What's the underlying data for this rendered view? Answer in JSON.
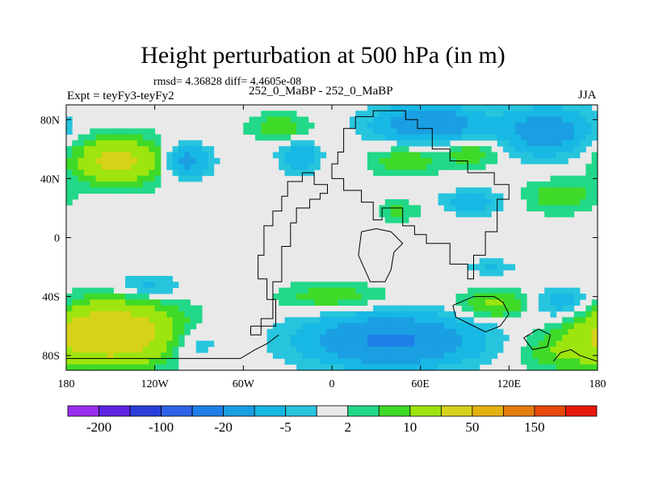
{
  "figure": {
    "title": "Height perturbation at 500 hPa (in m)",
    "stats": "rmsd= 4.36828 diff= 4.4605e-08",
    "experiment": "Expt = teyFy3-teyFy2",
    "comparison": "252_0_MaBP - 252_0_MaBP",
    "season": "JJA"
  },
  "chart_data": {
    "type": "heatmap",
    "title": "Height perturbation at 500 hPa (in m)",
    "xlabel": "",
    "ylabel": "",
    "xlim": [
      -180,
      180
    ],
    "ylim": [
      -90,
      90
    ],
    "x_ticks": [
      {
        "value": -180,
        "label": "180"
      },
      {
        "value": -120,
        "label": "120W"
      },
      {
        "value": -60,
        "label": "60W"
      },
      {
        "value": 0,
        "label": "0"
      },
      {
        "value": 60,
        "label": "60E"
      },
      {
        "value": 120,
        "label": "120E"
      },
      {
        "value": 180,
        "label": "180"
      }
    ],
    "y_ticks": [
      {
        "value": 80,
        "label": "80N"
      },
      {
        "value": 40,
        "label": "40N"
      },
      {
        "value": 0,
        "label": "0"
      },
      {
        "value": -40,
        "label": "40S"
      },
      {
        "value": -80,
        "label": "80S"
      }
    ],
    "colorbar": {
      "levels": [
        -200,
        -150,
        -100,
        -50,
        -20,
        -10,
        -5,
        -2,
        2,
        5,
        10,
        20,
        50,
        100,
        150,
        200
      ],
      "labels": [
        "-200",
        "-100",
        "-20",
        "-5",
        "2",
        "10",
        "50",
        "150"
      ],
      "colors": [
        "#9a2ff0",
        "#5e23e3",
        "#2a3fd9",
        "#2f63e6",
        "#1f7fe8",
        "#1a9fe3",
        "#17b8e4",
        "#27c5dd",
        "#e9e9e9",
        "#22d889",
        "#3fd928",
        "#9ee40e",
        "#d6d21a",
        "#e4b110",
        "#e57c0f",
        "#e8480c",
        "#e8180b"
      ]
    },
    "anomalies": [
      {
        "lon": -145,
        "lat": 52,
        "rlon": 28,
        "rlat": 15,
        "value": 25
      },
      {
        "lon": -100,
        "lat": 52,
        "rlon": 16,
        "rlat": 11,
        "value": -14
      },
      {
        "lon": -22,
        "lat": 55,
        "rlon": 13,
        "rlat": 10,
        "value": -10
      },
      {
        "lon": -36,
        "lat": 75,
        "rlon": 20,
        "rlat": 9,
        "value": 8
      },
      {
        "lon": 65,
        "lat": 77,
        "rlon": 35,
        "rlat": 12,
        "value": -18
      },
      {
        "lon": 95,
        "lat": 57,
        "rlon": 18,
        "rlat": 9,
        "value": 8
      },
      {
        "lon": 50,
        "lat": 52,
        "rlon": 24,
        "rlat": 10,
        "value": 8
      },
      {
        "lon": 145,
        "lat": 72,
        "rlon": 30,
        "rlat": 16,
        "value": -15
      },
      {
        "lon": 95,
        "lat": 24,
        "rlon": 20,
        "rlat": 8,
        "value": -8
      },
      {
        "lon": 45,
        "lat": 18,
        "rlon": 14,
        "rlat": 7,
        "value": 6
      },
      {
        "lon": 155,
        "lat": 28,
        "rlon": 24,
        "rlat": 11,
        "value": 8
      },
      {
        "lon": -150,
        "lat": -65,
        "rlon": 42,
        "rlat": 20,
        "value": 35
      },
      {
        "lon": -95,
        "lat": -72,
        "rlon": 18,
        "rlat": 12,
        "value": -7
      },
      {
        "lon": -125,
        "lat": -33,
        "rlon": 22,
        "rlat": 8,
        "value": -7
      },
      {
        "lon": 0,
        "lat": -40,
        "rlon": 35,
        "rlat": 9,
        "value": 8
      },
      {
        "lon": 40,
        "lat": -70,
        "rlon": 55,
        "rlat": 17,
        "value": -22
      },
      {
        "lon": 110,
        "lat": -45,
        "rlon": 22,
        "rlat": 9,
        "value": 12
      },
      {
        "lon": 158,
        "lat": -45,
        "rlon": 22,
        "rlat": 11,
        "value": -9
      },
      {
        "lon": 155,
        "lat": -78,
        "rlon": 26,
        "rlat": 12,
        "value": 8
      },
      {
        "lon": 108,
        "lat": -20,
        "rlon": 14,
        "rlat": 5,
        "value": -6
      }
    ],
    "land_outlines": [
      {
        "name": "north-america",
        "points": [
          [
            -55,
            -60
          ],
          [
            -38,
            -60
          ],
          [
            -38,
            -42
          ],
          [
            -44,
            -42
          ],
          [
            -44,
            -28
          ],
          [
            -50,
            -28
          ],
          [
            -50,
            -12
          ],
          [
            -46,
            -12
          ],
          [
            -46,
            8
          ],
          [
            -40,
            8
          ],
          [
            -40,
            18
          ],
          [
            -34,
            18
          ],
          [
            -34,
            28
          ],
          [
            -30,
            28
          ],
          [
            -30,
            38
          ],
          [
            -20,
            38
          ],
          [
            -20,
            44
          ],
          [
            -12,
            44
          ],
          [
            -12,
            36
          ],
          [
            -3,
            36
          ],
          [
            -3,
            30
          ],
          [
            -8,
            30
          ],
          [
            -8,
            26
          ],
          [
            -15,
            26
          ],
          [
            -15,
            20
          ],
          [
            -24,
            20
          ],
          [
            -24,
            10
          ],
          [
            -28,
            10
          ],
          [
            -28,
            -6
          ],
          [
            -34,
            -6
          ],
          [
            -34,
            -30
          ],
          [
            -40,
            -30
          ],
          [
            -40,
            -55
          ],
          [
            -48,
            -55
          ],
          [
            -48,
            -66
          ],
          [
            -55,
            -66
          ],
          [
            -55,
            -60
          ]
        ]
      },
      {
        "name": "eurasia",
        "points": [
          [
            8,
            64
          ],
          [
            8,
            74
          ],
          [
            16,
            74
          ],
          [
            16,
            82
          ],
          [
            28,
            82
          ],
          [
            28,
            86
          ],
          [
            50,
            86
          ],
          [
            50,
            80
          ],
          [
            58,
            80
          ],
          [
            58,
            74
          ],
          [
            68,
            74
          ],
          [
            68,
            60
          ],
          [
            80,
            60
          ],
          [
            80,
            52
          ],
          [
            92,
            52
          ],
          [
            92,
            44
          ],
          [
            110,
            44
          ],
          [
            110,
            36
          ],
          [
            120,
            36
          ],
          [
            120,
            26
          ],
          [
            112,
            26
          ],
          [
            112,
            4
          ],
          [
            104,
            4
          ],
          [
            104,
            -12
          ],
          [
            96,
            -12
          ],
          [
            96,
            -28
          ],
          [
            92,
            -28
          ],
          [
            92,
            -18
          ],
          [
            80,
            -18
          ],
          [
            80,
            -4
          ],
          [
            64,
            -4
          ],
          [
            64,
            2
          ],
          [
            56,
            2
          ],
          [
            56,
            8
          ],
          [
            48,
            8
          ],
          [
            48,
            20
          ],
          [
            34,
            20
          ],
          [
            34,
            12
          ],
          [
            28,
            12
          ],
          [
            28,
            24
          ],
          [
            20,
            24
          ],
          [
            20,
            32
          ],
          [
            8,
            32
          ],
          [
            8,
            40
          ],
          [
            0,
            40
          ],
          [
            0,
            50
          ],
          [
            4,
            50
          ],
          [
            4,
            58
          ],
          [
            8,
            58
          ],
          [
            8,
            64
          ]
        ]
      },
      {
        "name": "africa",
        "points": [
          [
            20,
            4
          ],
          [
            18,
            -12
          ],
          [
            26,
            -30
          ],
          [
            36,
            -30
          ],
          [
            40,
            -22
          ],
          [
            42,
            -10
          ],
          [
            48,
            -4
          ],
          [
            40,
            4
          ],
          [
            30,
            6
          ],
          [
            20,
            4
          ]
        ]
      },
      {
        "name": "australia",
        "points": [
          [
            82,
            -46
          ],
          [
            96,
            -40
          ],
          [
            110,
            -40
          ],
          [
            116,
            -44
          ],
          [
            120,
            -52
          ],
          [
            114,
            -60
          ],
          [
            104,
            -64
          ],
          [
            92,
            -58
          ],
          [
            84,
            -54
          ],
          [
            82,
            -46
          ]
        ]
      },
      {
        "name": "island-east",
        "points": [
          [
            130,
            -68
          ],
          [
            140,
            -62
          ],
          [
            148,
            -66
          ],
          [
            146,
            -74
          ],
          [
            136,
            -76
          ],
          [
            130,
            -68
          ]
        ]
      },
      {
        "name": "antarctic-shelf",
        "points": [
          [
            -180,
            -82
          ],
          [
            -62,
            -82
          ],
          [
            -52,
            -76
          ],
          [
            -44,
            -72
          ],
          [
            -36,
            -66
          ]
        ]
      },
      {
        "name": "antarctic-east",
        "points": [
          [
            150,
            -84
          ],
          [
            155,
            -78
          ],
          [
            162,
            -76
          ],
          [
            168,
            -80
          ],
          [
            180,
            -84
          ]
        ]
      }
    ]
  }
}
